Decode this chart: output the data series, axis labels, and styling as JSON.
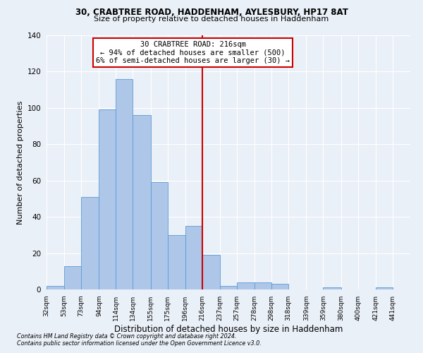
{
  "title1": "30, CRABTREE ROAD, HADDENHAM, AYLESBURY, HP17 8AT",
  "title2": "Size of property relative to detached houses in Haddenham",
  "xlabel": "Distribution of detached houses by size in Haddenham",
  "ylabel": "Number of detached properties",
  "footnote1": "Contains HM Land Registry data © Crown copyright and database right 2024.",
  "footnote2": "Contains public sector information licensed under the Open Government Licence v3.0.",
  "annotation_line1": "30 CRABTREE ROAD: 216sqm",
  "annotation_line2": "← 94% of detached houses are smaller (500)",
  "annotation_line3": "6% of semi-detached houses are larger (30) →",
  "bin_labels": [
    "32sqm",
    "53sqm",
    "73sqm",
    "94sqm",
    "114sqm",
    "134sqm",
    "155sqm",
    "175sqm",
    "196sqm",
    "216sqm",
    "237sqm",
    "257sqm",
    "278sqm",
    "298sqm",
    "318sqm",
    "339sqm",
    "359sqm",
    "380sqm",
    "400sqm",
    "421sqm",
    "441sqm"
  ],
  "bin_edges": [
    32,
    53,
    73,
    94,
    114,
    134,
    155,
    175,
    196,
    216,
    237,
    257,
    278,
    298,
    318,
    339,
    359,
    380,
    400,
    421,
    441,
    462
  ],
  "bar_heights": [
    2,
    13,
    51,
    99,
    116,
    96,
    59,
    30,
    35,
    19,
    2,
    4,
    4,
    3,
    0,
    0,
    1,
    0,
    0,
    1,
    0
  ],
  "bar_color": "#aec6e8",
  "bar_edge_color": "#5b9bd5",
  "vline_color": "#cc0000",
  "vline_x": 216,
  "box_facecolor": "#ffffff",
  "box_edgecolor": "#cc0000",
  "bg_color": "#eaf0f8",
  "grid_color": "#ffffff",
  "ylim": [
    0,
    140
  ],
  "yticks": [
    0,
    20,
    40,
    60,
    80,
    100,
    120,
    140
  ]
}
